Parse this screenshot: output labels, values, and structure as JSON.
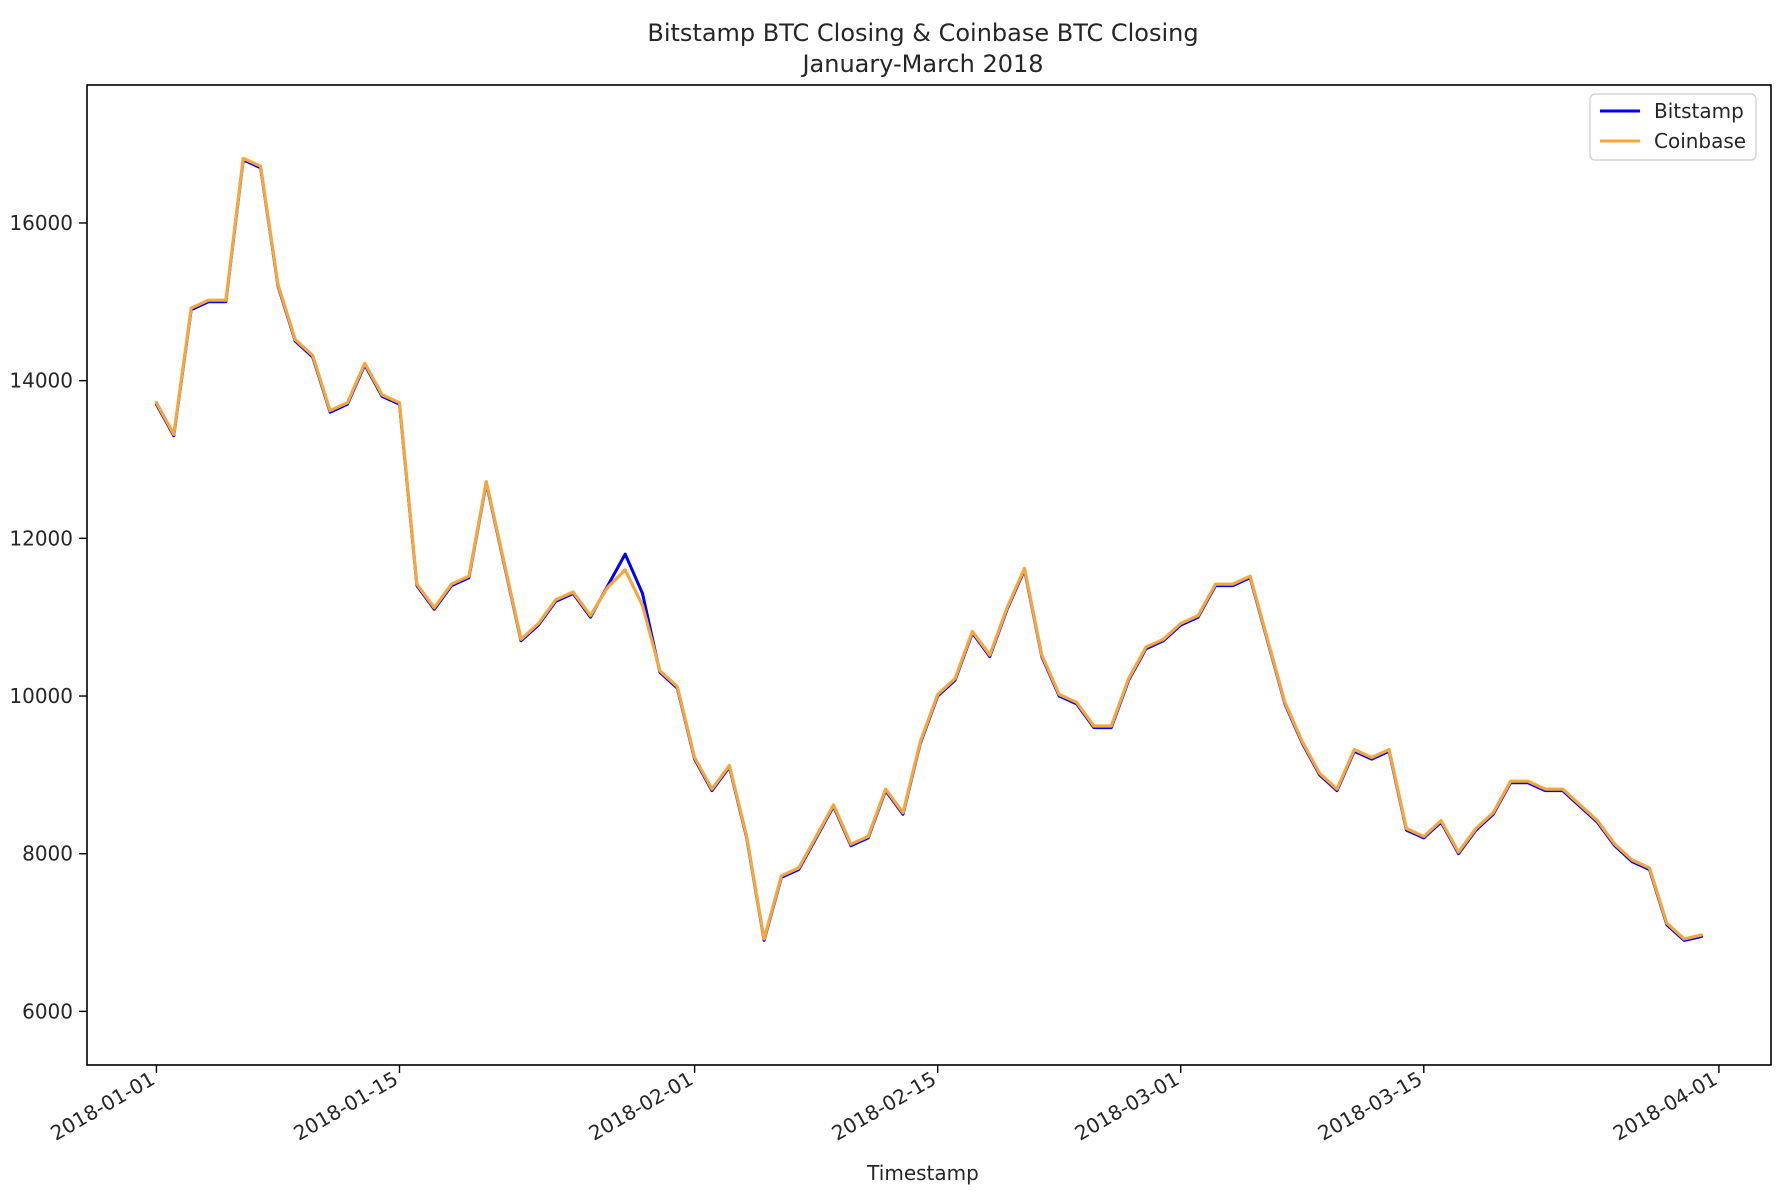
{
  "chart_data": {
    "type": "line",
    "title": "Bitstamp BTC Closing & Coinbase BTC Closing",
    "subtitle": "January-March 2018",
    "xlabel": "Timestamp",
    "ylabel": "",
    "xlim": [
      "2017-12-28",
      "2018-04-04"
    ],
    "ylim": [
      5320,
      17750
    ],
    "x_ticks": [
      "2018-01-01",
      "2018-01-15",
      "2018-02-01",
      "2018-02-15",
      "2018-03-01",
      "2018-03-15",
      "2018-04-01"
    ],
    "y_ticks": [
      6000,
      8000,
      10000,
      12000,
      14000,
      16000
    ],
    "grid": false,
    "legend": "top-right",
    "colors": {
      "Bitstamp": "#0000ff",
      "Coinbase": "#f4a83a",
      "axes": "#000000",
      "text": "#262626"
    },
    "x": [
      "2018-01-01",
      "2018-01-02",
      "2018-01-03",
      "2018-01-04",
      "2018-01-05",
      "2018-01-06",
      "2018-01-07",
      "2018-01-08",
      "2018-01-09",
      "2018-01-10",
      "2018-01-11",
      "2018-01-12",
      "2018-01-13",
      "2018-01-14",
      "2018-01-15",
      "2018-01-16",
      "2018-01-17",
      "2018-01-18",
      "2018-01-19",
      "2018-01-20",
      "2018-01-21",
      "2018-01-22",
      "2018-01-23",
      "2018-01-24",
      "2018-01-25",
      "2018-01-26",
      "2018-01-27",
      "2018-01-28",
      "2018-01-29",
      "2018-01-30",
      "2018-01-31",
      "2018-02-01",
      "2018-02-02",
      "2018-02-03",
      "2018-02-04",
      "2018-02-05",
      "2018-02-06",
      "2018-02-07",
      "2018-02-08",
      "2018-02-09",
      "2018-02-10",
      "2018-02-11",
      "2018-02-12",
      "2018-02-13",
      "2018-02-14",
      "2018-02-15",
      "2018-02-16",
      "2018-02-17",
      "2018-02-18",
      "2018-02-19",
      "2018-02-20",
      "2018-02-21",
      "2018-02-22",
      "2018-02-23",
      "2018-02-24",
      "2018-02-25",
      "2018-02-26",
      "2018-02-27",
      "2018-02-28",
      "2018-03-01",
      "2018-03-02",
      "2018-03-03",
      "2018-03-04",
      "2018-03-05",
      "2018-03-06",
      "2018-03-07",
      "2018-03-08",
      "2018-03-09",
      "2018-03-10",
      "2018-03-11",
      "2018-03-12",
      "2018-03-13",
      "2018-03-14",
      "2018-03-15",
      "2018-03-16",
      "2018-03-17",
      "2018-03-18",
      "2018-03-19",
      "2018-03-20",
      "2018-03-21",
      "2018-03-22",
      "2018-03-23",
      "2018-03-24",
      "2018-03-25",
      "2018-03-26",
      "2018-03-27",
      "2018-03-28",
      "2018-03-29",
      "2018-03-30",
      "2018-03-31"
    ],
    "series": [
      {
        "name": "Bitstamp",
        "values": [
          13700,
          13300,
          14900,
          15000,
          15000,
          16800,
          16700,
          15200,
          14500,
          14300,
          13600,
          13700,
          14200,
          13800,
          13700,
          11400,
          11100,
          11400,
          11500,
          12700,
          11700,
          10700,
          10900,
          11200,
          11300,
          11000,
          11400,
          11800,
          11300,
          10300,
          10100,
          9200,
          8800,
          9100,
          8200,
          6900,
          7700,
          7800,
          8200,
          8600,
          8100,
          8200,
          8800,
          8500,
          9400,
          10000,
          10200,
          10800,
          10500,
          11100,
          11600,
          10500,
          10000,
          9900,
          9600,
          9600,
          10200,
          10600,
          10700,
          10900,
          11000,
          11400,
          11400,
          11500,
          10700,
          9900,
          9400,
          9000,
          8800,
          9300,
          9200,
          9300,
          8300,
          8200,
          8400,
          8000,
          8300,
          8500,
          8900,
          8900,
          8800,
          8800,
          8600,
          8400,
          8100,
          7900,
          7800,
          7100,
          6900,
          6950
        ]
      },
      {
        "name": "Coinbase",
        "values": [
          13720,
          13320,
          14920,
          15020,
          15020,
          16820,
          16720,
          15220,
          14520,
          14320,
          13620,
          13720,
          14220,
          13820,
          13720,
          11420,
          11120,
          11420,
          11520,
          12720,
          11720,
          10720,
          10920,
          11220,
          11320,
          11020,
          11380,
          11600,
          11150,
          10320,
          10120,
          9220,
          8820,
          9120,
          8220,
          6920,
          7720,
          7820,
          8220,
          8620,
          8120,
          8220,
          8820,
          8520,
          9420,
          10020,
          10220,
          10820,
          10520,
          11120,
          11620,
          10520,
          10020,
          9920,
          9620,
          9620,
          10220,
          10620,
          10720,
          10920,
          11020,
          11420,
          11420,
          11520,
          10720,
          9920,
          9420,
          9020,
          8820,
          9320,
          9220,
          9320,
          8320,
          8220,
          8420,
          8020,
          8320,
          8520,
          8920,
          8920,
          8820,
          8820,
          8620,
          8420,
          8120,
          7920,
          7820,
          7120,
          6920,
          6970
        ]
      }
    ]
  }
}
